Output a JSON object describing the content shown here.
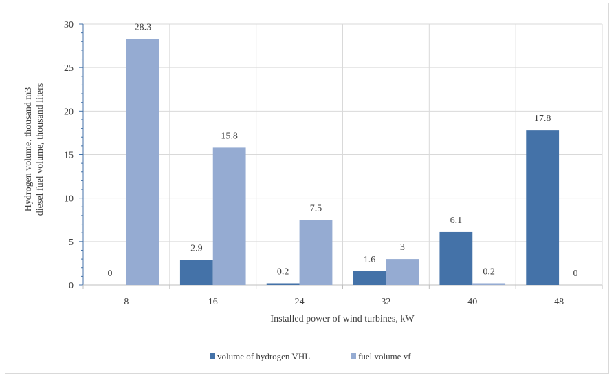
{
  "chart_data": {
    "type": "bar",
    "title": "",
    "categories": [
      "8",
      "16",
      "24",
      "32",
      "40",
      "48"
    ],
    "series": [
      {
        "name": "volume of hydrogen VHL",
        "values": [
          0,
          2.9,
          0.2,
          1.6,
          6.1,
          17.8
        ],
        "color": "#4472a8"
      },
      {
        "name": "fuel volume vf",
        "values": [
          28.3,
          15.8,
          7.5,
          3,
          0.2,
          0
        ],
        "color": "#95abd2"
      }
    ],
    "xlabel": "Installed power of wind turbines, kW",
    "ylabel_lines": [
      "Hydrogen volume, thousand m3",
      "diesel fuel volume, thousand liters"
    ],
    "ylim": [
      0,
      30
    ],
    "yticks": [
      0,
      5,
      10,
      15,
      20,
      25,
      30
    ],
    "grid": true,
    "legend_position": "bottom-center",
    "data_labels": true
  }
}
